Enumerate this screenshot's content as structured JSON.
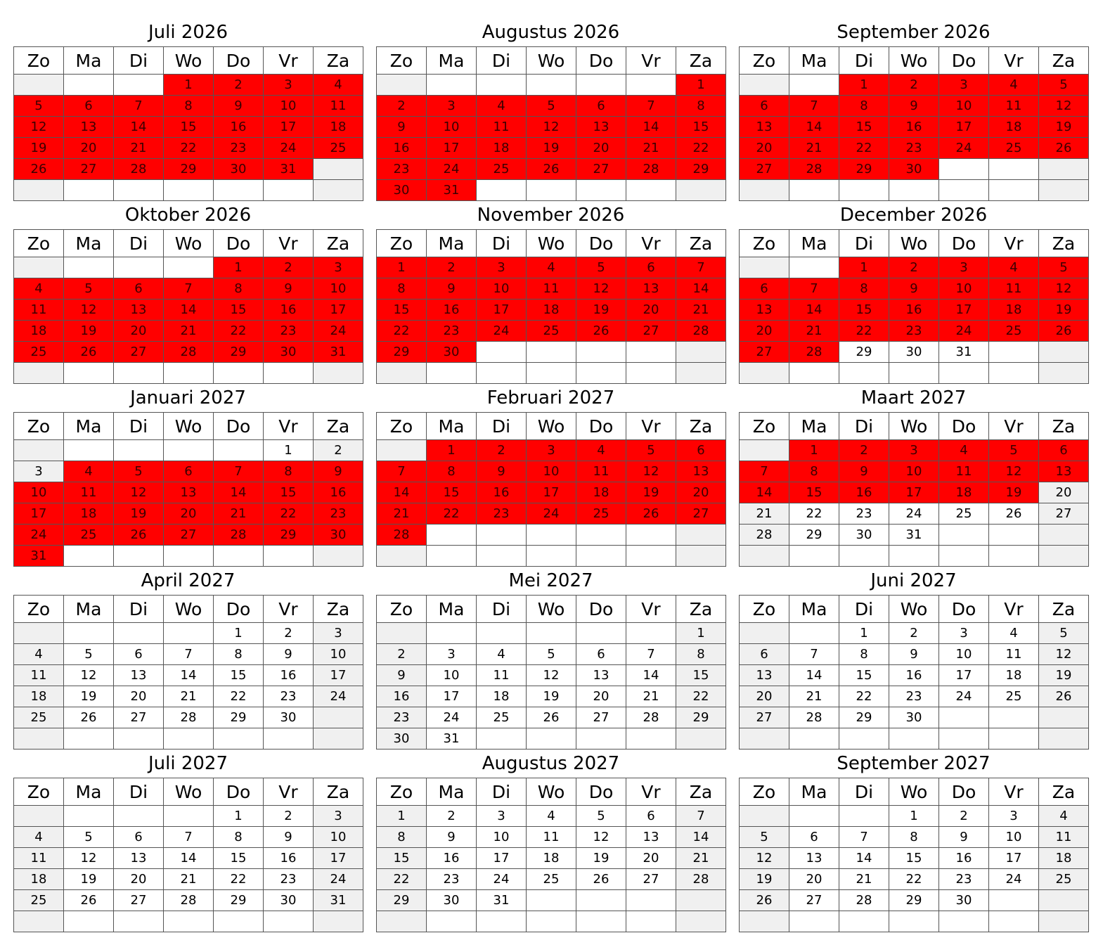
{
  "colors": {
    "highlight": "#ff0000",
    "weekend": "#f0f0f0",
    "border": "#555555"
  },
  "weekdays": [
    "Zo",
    "Ma",
    "Di",
    "Wo",
    "Do",
    "Vr",
    "Za"
  ],
  "months": [
    {
      "title": "Juli 2026",
      "days": 31,
      "start_weekday": 3,
      "highlight_until": 31
    },
    {
      "title": "Augustus 2026",
      "days": 31,
      "start_weekday": 6,
      "highlight_until": 31
    },
    {
      "title": "September 2026",
      "days": 30,
      "start_weekday": 2,
      "highlight_until": 30
    },
    {
      "title": "Oktober 2026",
      "days": 31,
      "start_weekday": 4,
      "highlight_until": 31
    },
    {
      "title": "November 2026",
      "days": 30,
      "start_weekday": 0,
      "highlight_until": 30
    },
    {
      "title": "December 2026",
      "days": 31,
      "start_weekday": 2,
      "highlight_until": 28
    },
    {
      "title": "Januari 2027",
      "days": 31,
      "start_weekday": 5,
      "highlight_from": 4,
      "highlight_until": 31
    },
    {
      "title": "Februari 2027",
      "days": 28,
      "start_weekday": 1,
      "highlight_until": 28
    },
    {
      "title": "Maart 2027",
      "days": 31,
      "start_weekday": 1,
      "highlight_until": 19
    },
    {
      "title": "April 2027",
      "days": 30,
      "start_weekday": 4,
      "highlight_until": 0
    },
    {
      "title": "Mei 2027",
      "days": 31,
      "start_weekday": 6,
      "highlight_until": 0
    },
    {
      "title": "Juni 2027",
      "days": 30,
      "start_weekday": 2,
      "highlight_until": 0
    },
    {
      "title": "Juli 2027",
      "days": 31,
      "start_weekday": 4,
      "highlight_until": 0
    },
    {
      "title": "Augustus 2027",
      "days": 31,
      "start_weekday": 0,
      "highlight_until": 0
    },
    {
      "title": "September 2027",
      "days": 30,
      "start_weekday": 3,
      "highlight_until": 0
    }
  ]
}
